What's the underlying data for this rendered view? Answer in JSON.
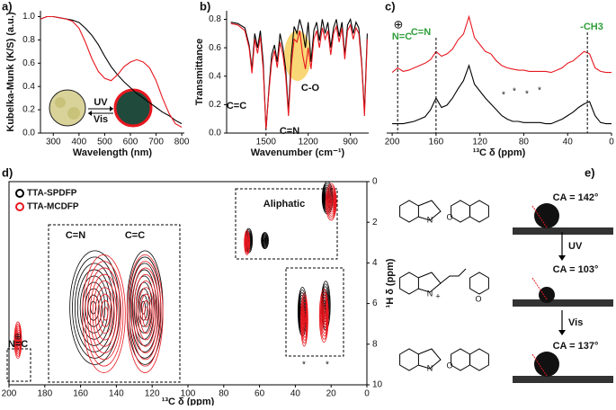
{
  "chart_data": [
    {
      "panel": "a)",
      "type": "line",
      "xlabel": "Wavelength (nm)",
      "ylabel": "Kubelka-Munk (K/S) (a.u.)",
      "xlim": [
        250,
        810
      ],
      "xticks": [
        300,
        400,
        500,
        600,
        700,
        800
      ],
      "ylim": [
        0,
        1.05
      ],
      "yticks": [
        {
          "value": 0,
          "label": "0.0"
        },
        {
          "value": 0.2,
          "label": "0.2"
        },
        {
          "value": 0.4,
          "label": "0.4"
        },
        {
          "value": 0.6,
          "label": "0.6"
        },
        {
          "value": 0.8,
          "label": "0.8"
        },
        {
          "value": 1,
          "label": "1.0"
        }
      ],
      "x": [
        250,
        275,
        300,
        325,
        350,
        375,
        400,
        425,
        450,
        475,
        500,
        525,
        550,
        575,
        600,
        625,
        650,
        675,
        700,
        725,
        750,
        775,
        800
      ],
      "series": [
        {
          "color": "#000000",
          "values": [
            0.98,
            1.0,
            1.0,
            0.99,
            0.98,
            0.97,
            0.95,
            0.9,
            0.84,
            0.76,
            0.66,
            0.57,
            0.5,
            0.44,
            0.39,
            0.34,
            0.3,
            0.26,
            0.22,
            0.18,
            0.15,
            0.11,
            0.08
          ]
        },
        {
          "color": "#e8171f",
          "values": [
            0.98,
            1.0,
            1.0,
            0.99,
            0.98,
            0.96,
            0.9,
            0.78,
            0.64,
            0.53,
            0.47,
            0.45,
            0.5,
            0.57,
            0.61,
            0.63,
            0.61,
            0.56,
            0.45,
            0.3,
            0.17,
            0.08,
            0.05
          ]
        }
      ],
      "annotations": [
        {
          "text": "UV"
        },
        {
          "text": "Vis"
        }
      ]
    },
    {
      "panel": "b)",
      "type": "line",
      "xlabel": "Wavenumber (cm⁻¹)",
      "ylabel": "Transmittance",
      "xlim": [
        1780,
        770
      ],
      "xticks": [
        1500,
        1200,
        900
      ],
      "ylim": [
        0,
        0.86
      ],
      "yticks": [
        {
          "value": 0,
          "label": "0.0"
        },
        {
          "value": 0.2,
          "label": "0.2"
        },
        {
          "value": 0.4,
          "label": "0.4"
        },
        {
          "value": 0.6,
          "label": "0.6"
        },
        {
          "value": 0.8,
          "label": "0.8"
        }
      ],
      "x": [
        1750,
        1700,
        1650,
        1620,
        1600,
        1580,
        1560,
        1540,
        1520,
        1500,
        1480,
        1460,
        1440,
        1420,
        1400,
        1380,
        1360,
        1340,
        1320,
        1300,
        1280,
        1260,
        1240,
        1220,
        1200,
        1180,
        1160,
        1140,
        1120,
        1100,
        1080,
        1060,
        1040,
        1020,
        1000,
        980,
        960,
        940,
        920,
        900,
        880,
        860,
        840,
        820,
        800,
        780
      ],
      "series": [
        {
          "color": "#000000",
          "values": [
            0.78,
            0.77,
            0.74,
            0.62,
            0.45,
            0.7,
            0.6,
            0.72,
            0.5,
            0.02,
            0.3,
            0.55,
            0.62,
            0.5,
            0.7,
            0.6,
            0.45,
            0.15,
            0.55,
            0.75,
            0.7,
            0.8,
            0.72,
            0.6,
            0.78,
            0.5,
            0.72,
            0.78,
            0.65,
            0.8,
            0.7,
            0.78,
            0.6,
            0.74,
            0.8,
            0.68,
            0.78,
            0.55,
            0.76,
            0.8,
            0.7,
            0.78,
            0.74,
            0.5,
            0.15,
            0.7
          ]
        },
        {
          "color": "#e8171f",
          "values": [
            0.77,
            0.76,
            0.72,
            0.6,
            0.42,
            0.66,
            0.56,
            0.68,
            0.45,
            0.03,
            0.28,
            0.5,
            0.58,
            0.46,
            0.64,
            0.55,
            0.4,
            0.12,
            0.48,
            0.66,
            0.64,
            0.72,
            0.55,
            0.45,
            0.6,
            0.45,
            0.66,
            0.72,
            0.6,
            0.74,
            0.66,
            0.72,
            0.55,
            0.7,
            0.75,
            0.64,
            0.74,
            0.52,
            0.72,
            0.76,
            0.66,
            0.74,
            0.7,
            0.48,
            0.12,
            0.66
          ]
        }
      ],
      "annotations": [
        {
          "text": "C=C"
        },
        {
          "text": "C=N"
        },
        {
          "text": "C-O"
        }
      ]
    },
    {
      "panel": "c)",
      "type": "line",
      "xlabel": "¹³C δ (ppm)",
      "xlim": [
        205,
        0
      ],
      "xticks": [
        200,
        160,
        120,
        80,
        40,
        0
      ],
      "ylim": [
        0,
        1.05
      ],
      "x": [
        200,
        195,
        190,
        185,
        180,
        175,
        170,
        165,
        160,
        155,
        150,
        145,
        140,
        135,
        130,
        125,
        120,
        115,
        110,
        105,
        100,
        95,
        90,
        85,
        80,
        75,
        70,
        65,
        60,
        55,
        50,
        45,
        40,
        35,
        30,
        25,
        20,
        15,
        10,
        5,
        0
      ],
      "series": [
        {
          "color": "#000000",
          "values": [
            0.08,
            0.08,
            0.08,
            0.09,
            0.1,
            0.12,
            0.14,
            0.2,
            0.3,
            0.22,
            0.24,
            0.3,
            0.38,
            0.45,
            0.58,
            0.42,
            0.36,
            0.3,
            0.25,
            0.2,
            0.15,
            0.12,
            0.1,
            0.1,
            0.09,
            0.09,
            0.09,
            0.09,
            0.08,
            0.08,
            0.1,
            0.12,
            0.15,
            0.18,
            0.22,
            0.25,
            0.27,
            0.15,
            0.09,
            0.08,
            0.08
          ]
        },
        {
          "color": "#e8171f",
          "values": [
            0.52,
            0.56,
            0.53,
            0.54,
            0.56,
            0.58,
            0.6,
            0.63,
            0.7,
            0.66,
            0.68,
            0.72,
            0.8,
            0.85,
            1.0,
            0.82,
            0.76,
            0.7,
            0.68,
            0.62,
            0.58,
            0.56,
            0.55,
            0.54,
            0.54,
            0.53,
            0.53,
            0.53,
            0.53,
            0.52,
            0.54,
            0.56,
            0.6,
            0.62,
            0.66,
            0.7,
            0.68,
            0.56,
            0.53,
            0.52,
            0.52
          ]
        }
      ],
      "annotations": [
        {
          "text": "⊕"
        },
        {
          "text": "N=C",
          "x": 195
        },
        {
          "text": "C=N",
          "x": 160
        },
        {
          "text": "-CH3",
          "x": 22
        },
        {
          "text": "*"
        },
        {
          "text": "*"
        },
        {
          "text": "*"
        },
        {
          "text": "*"
        }
      ]
    },
    {
      "panel": "d)",
      "type": "contour",
      "xlabel": "¹³C δ (ppm)",
      "ylabel": "¹H δ (ppm)",
      "xlim": [
        200,
        0
      ],
      "xticks": [
        200,
        180,
        160,
        140,
        120,
        100,
        80,
        60,
        40,
        20,
        0
      ],
      "ylim": [
        0,
        10
      ],
      "y_reversed": true,
      "yticks": [
        0,
        2,
        4,
        6,
        8,
        10
      ],
      "series": [
        {
          "name": "TTA-SPDFP",
          "color": "#000000",
          "x": [
            152,
            124,
            66,
            57,
            36,
            23,
            22
          ],
          "values": [
            6.2,
            6.2,
            2.9,
            2.9,
            6.4,
            6.1,
            0.8
          ],
          "x_spread": [
            14,
            10,
            2,
            2,
            2.5,
            2.5,
            3
          ],
          "y_spread": [
            2.8,
            2.8,
            0.6,
            0.4,
            1.2,
            1.2,
            0.8
          ]
        },
        {
          "name": "TTA-MCDFP",
          "color": "#e8171f",
          "x": [
            195,
            147,
            124,
            67,
            35,
            24,
            20
          ],
          "values": [
            7.8,
            6.5,
            6.5,
            3.0,
            6.8,
            6.6,
            1.0
          ],
          "x_spread": [
            2,
            12,
            10,
            1.5,
            2,
            2.5,
            3
          ],
          "y_spread": [
            0.9,
            2.9,
            2.9,
            0.6,
            1.3,
            1.3,
            0.9
          ]
        }
      ],
      "annotations": [
        {
          "text": "Aliphatic"
        },
        {
          "text": "C=N"
        },
        {
          "text": "C=C"
        },
        {
          "text": "⊕"
        },
        {
          "text": "N=C"
        },
        {
          "text": "*"
        },
        {
          "text": "*"
        }
      ]
    }
  ],
  "schematic": {
    "panel": "e)",
    "contact_angles": [
      "CA = 142°",
      "CA = 103°",
      "CA = 137°"
    ],
    "arrows": [
      "UV",
      "Vis"
    ],
    "atoms": [
      [
        "N",
        "O"
      ],
      [
        "N",
        "+",
        "O"
      ],
      [
        "N",
        "O"
      ]
    ]
  }
}
